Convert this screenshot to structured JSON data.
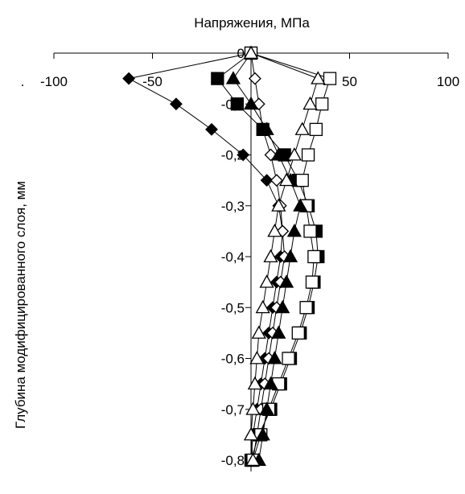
{
  "chart_data": {
    "type": "scatter",
    "title": "Напряжения, МПа",
    "xlabel": "",
    "ylabel": "Глубина модифицированного слоя, мм",
    "xlim": [
      -100,
      100
    ],
    "ylim": [
      -0.8,
      0
    ],
    "x_ticks": [
      -100,
      -50,
      0,
      50,
      100
    ],
    "x_tick_labels": [
      "-100",
      "-50",
      "0",
      "50",
      "100"
    ],
    "y_ticks": [
      0,
      -0.1,
      -0.2,
      -0.3,
      -0.4,
      -0.5,
      -0.6,
      -0.7,
      -0.8
    ],
    "y_tick_labels": [
      "0",
      "-0,1",
      "-0,2",
      "-0,3",
      "-0,4",
      "-0,5",
      "-0,6",
      "-0,7",
      "-0,8"
    ],
    "x_axis_position": "top",
    "grid": false,
    "legend": "none",
    "stray_text": ".",
    "series": [
      {
        "marker": "diamond-filled",
        "points": [
          [
            0,
            0
          ],
          [
            -62,
            -0.05
          ],
          [
            -38,
            -0.1
          ],
          [
            -20,
            -0.15
          ],
          [
            -4,
            -0.2
          ],
          [
            8,
            -0.25
          ],
          [
            14,
            -0.3
          ],
          [
            16,
            -0.35
          ],
          [
            15,
            -0.4
          ],
          [
            13,
            -0.45
          ],
          [
            11,
            -0.5
          ],
          [
            9,
            -0.55
          ],
          [
            7,
            -0.6
          ],
          [
            5,
            -0.65
          ],
          [
            3,
            -0.7
          ],
          [
            1,
            -0.75
          ],
          [
            0,
            -0.8
          ]
        ]
      },
      {
        "marker": "diamond-open",
        "points": [
          [
            0,
            0
          ],
          [
            2,
            -0.05
          ],
          [
            4,
            -0.1
          ],
          [
            6,
            -0.15
          ],
          [
            10,
            -0.2
          ],
          [
            13,
            -0.25
          ],
          [
            15,
            -0.3
          ],
          [
            16,
            -0.35
          ],
          [
            17,
            -0.4
          ],
          [
            15,
            -0.45
          ],
          [
            13,
            -0.5
          ],
          [
            11,
            -0.55
          ],
          [
            9,
            -0.6
          ],
          [
            7,
            -0.65
          ],
          [
            5,
            -0.7
          ],
          [
            3,
            -0.75
          ],
          [
            1,
            -0.8
          ]
        ]
      },
      {
        "marker": "square-filled",
        "points": [
          [
            0,
            0
          ],
          [
            -17,
            -0.05
          ],
          [
            -7,
            -0.1
          ],
          [
            6,
            -0.15
          ],
          [
            17,
            -0.2
          ],
          [
            24,
            -0.25
          ],
          [
            29,
            -0.3
          ],
          [
            33,
            -0.35
          ],
          [
            34,
            -0.4
          ],
          [
            32,
            -0.45
          ],
          [
            29,
            -0.5
          ],
          [
            25,
            -0.55
          ],
          [
            20,
            -0.6
          ],
          [
            15,
            -0.65
          ],
          [
            10,
            -0.7
          ],
          [
            4,
            -0.75
          ],
          [
            0,
            -0.8
          ]
        ]
      },
      {
        "marker": "square-open",
        "points": [
          [
            0,
            0
          ],
          [
            40,
            -0.05
          ],
          [
            36,
            -0.1
          ],
          [
            33,
            -0.15
          ],
          [
            29,
            -0.2
          ],
          [
            26,
            -0.25
          ],
          [
            28,
            -0.3
          ],
          [
            30,
            -0.35
          ],
          [
            32,
            -0.4
          ],
          [
            31,
            -0.45
          ],
          [
            28,
            -0.5
          ],
          [
            24,
            -0.55
          ],
          [
            19,
            -0.6
          ],
          [
            14,
            -0.65
          ],
          [
            9,
            -0.7
          ],
          [
            5,
            -0.75
          ],
          [
            1,
            -0.8
          ]
        ]
      },
      {
        "marker": "triangle-filled",
        "points": [
          [
            0,
            0
          ],
          [
            -9,
            -0.05
          ],
          [
            0,
            -0.1
          ],
          [
            8,
            -0.15
          ],
          [
            14,
            -0.2
          ],
          [
            20,
            -0.25
          ],
          [
            25,
            -0.3
          ],
          [
            22,
            -0.35
          ],
          [
            20,
            -0.4
          ],
          [
            18,
            -0.45
          ],
          [
            16,
            -0.5
          ],
          [
            14,
            -0.55
          ],
          [
            12,
            -0.6
          ],
          [
            10,
            -0.65
          ],
          [
            8,
            -0.7
          ],
          [
            6,
            -0.75
          ],
          [
            4,
            -0.8
          ]
        ]
      },
      {
        "marker": "triangle-open",
        "points": [
          [
            0,
            0
          ],
          [
            34,
            -0.05
          ],
          [
            30,
            -0.1
          ],
          [
            26,
            -0.15
          ],
          [
            22,
            -0.2
          ],
          [
            18,
            -0.25
          ],
          [
            14,
            -0.3
          ],
          [
            12,
            -0.35
          ],
          [
            10,
            -0.4
          ],
          [
            8,
            -0.45
          ],
          [
            6,
            -0.5
          ],
          [
            4,
            -0.55
          ],
          [
            3,
            -0.6
          ],
          [
            2,
            -0.65
          ],
          [
            1,
            -0.7
          ],
          [
            0,
            -0.75
          ],
          [
            1,
            -0.8
          ]
        ]
      }
    ]
  }
}
